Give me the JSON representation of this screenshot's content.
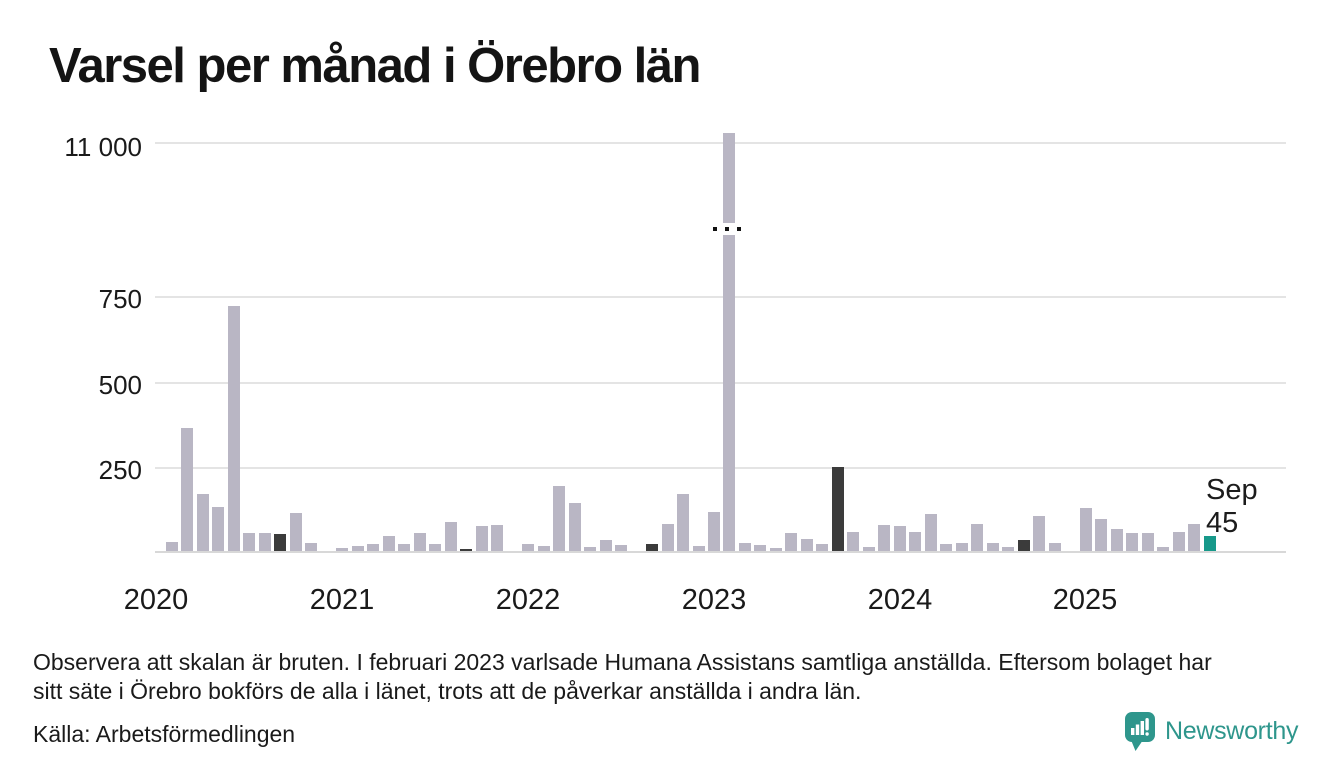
{
  "title": "Varsel per månad i Örebro län",
  "y_axis": {
    "ticks": [
      "11 000",
      "750",
      "500",
      "250"
    ]
  },
  "x_axis": {
    "years": [
      "2020",
      "2021",
      "2022",
      "2023",
      "2024",
      "2025"
    ]
  },
  "annotation": {
    "month": "Sep",
    "value": "45"
  },
  "footnote": {
    "line1": "Observera att skalan är bruten. I februari 2023 varlsade Humana Assistans samtliga anställda. Eftersom bolaget har",
    "line2": "sitt säte i Örebro bokförs de alla i länet, trots att de påverkar anställda i andra län."
  },
  "source": "Källa: Arbetsförmedlingen",
  "brand": {
    "name": "Newsworthy",
    "logo_icon": "speech-bubble-bar-chart-exclamation"
  },
  "colors": {
    "bar_default": "#b9b6c4",
    "bar_highlight_dark": "#3b3b3b",
    "bar_current_teal": "#17998a",
    "brand_teal": "#2e968c",
    "gridline": "#e4e4e4",
    "axis_line": "#d8d8d8",
    "text": "#1a1a1a"
  },
  "chart_data": {
    "type": "bar",
    "title": "Varsel per månad i Örebro län",
    "xlabel": "",
    "ylabel": "",
    "yticks": [
      250,
      500,
      750,
      11000
    ],
    "ylim": [
      0,
      800
    ],
    "broken_axis": true,
    "break_note": "Scale broken above ~800; Feb 2023 bar (Humana Assistans, 11 000) shown with break dots",
    "grid": true,
    "legend_position": "none",
    "highlight_meaning": {
      "dark": "September in previous years",
      "teal": "September 2025, latest value (labeled Sep 45)",
      "break": "February 2023 broken-scale bar"
    },
    "months": [
      {
        "m": "2020-01",
        "v": 0
      },
      {
        "m": "2020-02",
        "v": 26
      },
      {
        "m": "2020-03",
        "v": 361
      },
      {
        "m": "2020-04",
        "v": 168
      },
      {
        "m": "2020-05",
        "v": 131
      },
      {
        "m": "2020-06",
        "v": 720
      },
      {
        "m": "2020-07",
        "v": 52
      },
      {
        "m": "2020-08",
        "v": 52
      },
      {
        "m": "2020-09",
        "v": 49,
        "c": "dark"
      },
      {
        "m": "2020-10",
        "v": 111
      },
      {
        "m": "2020-11",
        "v": 23
      },
      {
        "m": "2020-12",
        "v": 0
      },
      {
        "m": "2021-01",
        "v": 8
      },
      {
        "m": "2021-02",
        "v": 16
      },
      {
        "m": "2021-03",
        "v": 22
      },
      {
        "m": "2021-04",
        "v": 43
      },
      {
        "m": "2021-05",
        "v": 20
      },
      {
        "m": "2021-06",
        "v": 54
      },
      {
        "m": "2021-07",
        "v": 21
      },
      {
        "m": "2021-08",
        "v": 84
      },
      {
        "m": "2021-09",
        "v": 5,
        "c": "dark"
      },
      {
        "m": "2021-10",
        "v": 74
      },
      {
        "m": "2021-11",
        "v": 77
      },
      {
        "m": "2021-12",
        "v": 0
      },
      {
        "m": "2022-01",
        "v": 22
      },
      {
        "m": "2022-02",
        "v": 14
      },
      {
        "m": "2022-03",
        "v": 190
      },
      {
        "m": "2022-04",
        "v": 141
      },
      {
        "m": "2022-05",
        "v": 12
      },
      {
        "m": "2022-06",
        "v": 32
      },
      {
        "m": "2022-07",
        "v": 17
      },
      {
        "m": "2022-08",
        "v": 0
      },
      {
        "m": "2022-09",
        "v": 22,
        "c": "dark"
      },
      {
        "m": "2022-10",
        "v": 81
      },
      {
        "m": "2022-11",
        "v": 168
      },
      {
        "m": "2022-12",
        "v": 14
      },
      {
        "m": "2023-01",
        "v": 116
      },
      {
        "m": "2023-02",
        "v": 11000,
        "c": "break"
      },
      {
        "m": "2023-03",
        "v": 24
      },
      {
        "m": "2023-04",
        "v": 18
      },
      {
        "m": "2023-05",
        "v": 8
      },
      {
        "m": "2023-06",
        "v": 52
      },
      {
        "m": "2023-07",
        "v": 35
      },
      {
        "m": "2023-08",
        "v": 22
      },
      {
        "m": "2023-09",
        "v": 248,
        "c": "dark"
      },
      {
        "m": "2023-10",
        "v": 55
      },
      {
        "m": "2023-11",
        "v": 12
      },
      {
        "m": "2023-12",
        "v": 76
      },
      {
        "m": "2024-01",
        "v": 74
      },
      {
        "m": "2024-02",
        "v": 57
      },
      {
        "m": "2024-03",
        "v": 109
      },
      {
        "m": "2024-04",
        "v": 20
      },
      {
        "m": "2024-05",
        "v": 25
      },
      {
        "m": "2024-06",
        "v": 79
      },
      {
        "m": "2024-07",
        "v": 25
      },
      {
        "m": "2024-08",
        "v": 13
      },
      {
        "m": "2024-09",
        "v": 33,
        "c": "dark"
      },
      {
        "m": "2024-10",
        "v": 102
      },
      {
        "m": "2024-11",
        "v": 25
      },
      {
        "m": "2024-12",
        "v": 0
      },
      {
        "m": "2025-01",
        "v": 126
      },
      {
        "m": "2025-02",
        "v": 93
      },
      {
        "m": "2025-03",
        "v": 66
      },
      {
        "m": "2025-04",
        "v": 52
      },
      {
        "m": "2025-05",
        "v": 52
      },
      {
        "m": "2025-06",
        "v": 12
      },
      {
        "m": "2025-07",
        "v": 57
      },
      {
        "m": "2025-08",
        "v": 79
      },
      {
        "m": "2025-09",
        "v": 45,
        "c": "teal"
      }
    ]
  }
}
